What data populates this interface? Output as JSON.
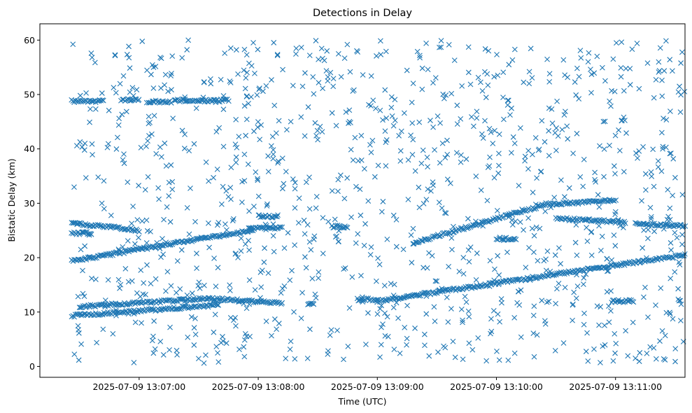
{
  "chart_data": {
    "type": "scatter",
    "title": "Detections in Delay",
    "xlabel": "Time (UTC)",
    "ylabel": "Bistatic Delay (km)",
    "xlim": [
      "2025-07-09 13:06:10",
      "2025-07-09 13:11:35"
    ],
    "ylim": [
      -2,
      63
    ],
    "x_ticks": [
      "2025-07-09 13:07:00",
      "2025-07-09 13:08:00",
      "2025-07-09 13:09:00",
      "2025-07-09 13:10:00",
      "2025-07-09 13:11:00"
    ],
    "y_ticks": [
      0,
      10,
      20,
      30,
      40,
      50,
      60
    ],
    "marker": "x",
    "color": "#1f77b4",
    "grid": false,
    "tracks": [
      {
        "x": [
          "2025-07-09 13:06:26",
          "2025-07-09 13:07:58"
        ],
        "y": [
          19.4,
          25.1
        ]
      },
      {
        "x": [
          "2025-07-09 13:06:26",
          "2025-07-09 13:07:00"
        ],
        "y": [
          26.4,
          25.0
        ]
      },
      {
        "x": [
          "2025-07-09 13:06:26",
          "2025-07-09 13:06:36"
        ],
        "y": [
          24.5,
          24.5
        ]
      },
      {
        "x": [
          "2025-07-09 13:07:55",
          "2025-07-09 13:08:12"
        ],
        "y": [
          25.4,
          25.4
        ]
      },
      {
        "x": [
          "2025-07-09 13:08:00",
          "2025-07-09 13:08:10"
        ],
        "y": [
          27.6,
          27.6
        ]
      },
      {
        "x": [
          "2025-07-09 13:08:37",
          "2025-07-09 13:08:45"
        ],
        "y": [
          25.7,
          25.7
        ]
      },
      {
        "x": [
          "2025-07-09 13:06:26",
          "2025-07-09 13:07:40"
        ],
        "y": [
          9.3,
          11.3
        ]
      },
      {
        "x": [
          "2025-07-09 13:06:30",
          "2025-07-09 13:07:35"
        ],
        "y": [
          11.0,
          12.5
        ]
      },
      {
        "x": [
          "2025-07-09 13:07:35",
          "2025-07-09 13:08:12"
        ],
        "y": [
          12.5,
          11.6
        ]
      },
      {
        "x": [
          "2025-07-09 13:08:25",
          "2025-07-09 13:08:28"
        ],
        "y": [
          11.5,
          11.5
        ]
      },
      {
        "x": [
          "2025-07-09 13:08:50",
          "2025-07-09 13:09:00"
        ],
        "y": [
          12.3,
          12.3
        ]
      },
      {
        "x": [
          "2025-07-09 13:09:00",
          "2025-07-09 13:10:40"
        ],
        "y": [
          12.0,
          17.5
        ]
      },
      {
        "x": [
          "2025-07-09 13:10:40",
          "2025-07-09 13:11:35"
        ],
        "y": [
          17.5,
          20.5
        ]
      },
      {
        "x": [
          "2025-07-09 13:09:18",
          "2025-07-09 13:10:25"
        ],
        "y": [
          22.7,
          29.8
        ]
      },
      {
        "x": [
          "2025-07-09 13:10:00",
          "2025-07-09 13:10:10"
        ],
        "y": [
          23.5,
          23.5
        ]
      },
      {
        "x": [
          "2025-07-09 13:10:25",
          "2025-07-09 13:11:00"
        ],
        "y": [
          29.8,
          30.5
        ]
      },
      {
        "x": [
          "2025-07-09 13:10:30",
          "2025-07-09 13:11:05"
        ],
        "y": [
          27.2,
          26.5
        ]
      },
      {
        "x": [
          "2025-07-09 13:11:10",
          "2025-07-09 13:11:35"
        ],
        "y": [
          26.2,
          25.8
        ]
      },
      {
        "x": [
          "2025-07-09 13:10:58",
          "2025-07-09 13:11:09"
        ],
        "y": [
          12.0,
          12.0
        ]
      },
      {
        "x": [
          "2025-07-09 13:06:26",
          "2025-07-09 13:06:42"
        ],
        "y": [
          48.8,
          48.8
        ]
      },
      {
        "x": [
          "2025-07-09 13:06:51",
          "2025-07-09 13:07:00"
        ],
        "y": [
          49.0,
          49.0
        ]
      },
      {
        "x": [
          "2025-07-09 13:07:04",
          "2025-07-09 13:07:16"
        ],
        "y": [
          48.7,
          48.7
        ]
      },
      {
        "x": [
          "2025-07-09 13:07:18",
          "2025-07-09 13:07:45"
        ],
        "y": [
          48.9,
          48.9
        ]
      }
    ]
  }
}
